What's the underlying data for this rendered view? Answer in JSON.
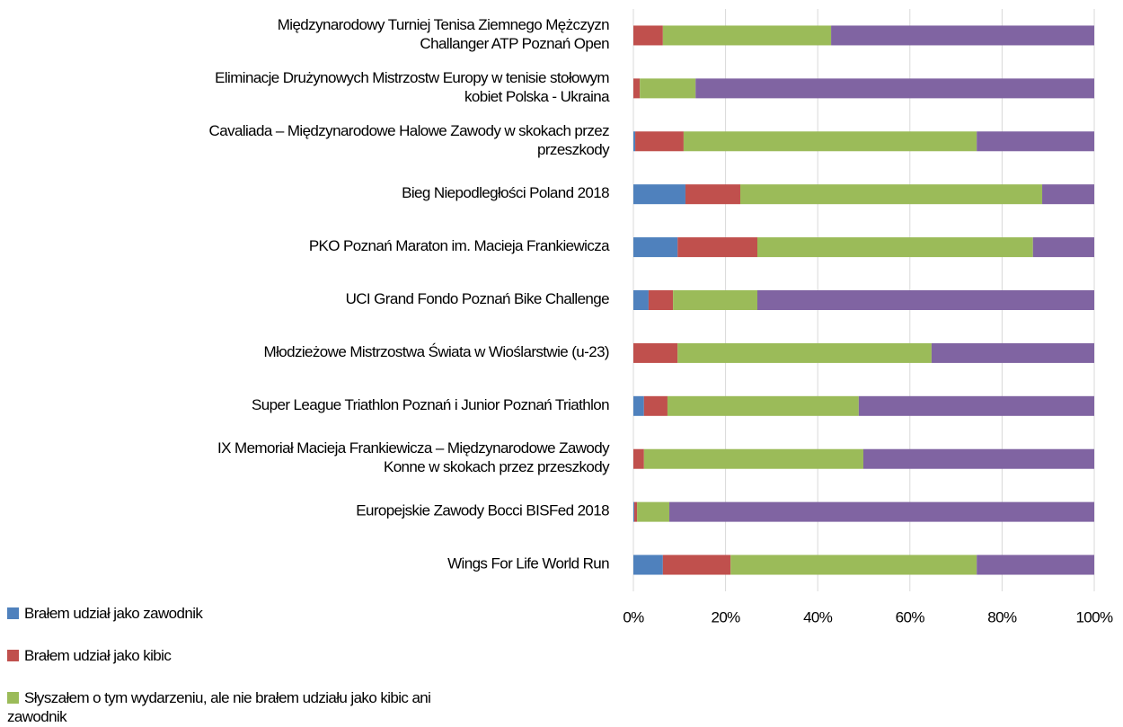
{
  "chart_data": {
    "type": "stacked-barh",
    "categories": [
      [
        "Międzynarodowy Turniej Tenisa Ziemnego Mężczyzn",
        "Challanger ATP Poznań Open"
      ],
      [
        "Eliminacje Drużynowych Mistrzostw Europy w tenisie stołowym",
        "kobiet Polska - Ukraina"
      ],
      [
        "Cavaliada – Międzynarodowe Halowe Zawody w skokach przez",
        "przeszkody"
      ],
      [
        "Bieg Niepodległości Poland 2018"
      ],
      [
        "PKO Poznań Maraton im. Macieja Frankiewicza"
      ],
      [
        "UCI Grand Fondo Poznań Bike Challenge"
      ],
      [
        "Młodzieżowe Mistrzostwa Świata w Wioślarstwie (u-23)"
      ],
      [
        "Super League Triathlon Poznań i Junior Poznań Triathlon"
      ],
      [
        "IX Memoriał Macieja Frankiewicza – Międzynarodowe Zawody",
        "Konne w skokach przez przeszkody"
      ],
      [
        "Europejskie Zawody Bocci BISFed 2018"
      ],
      [
        "Wings For Life World Run"
      ]
    ],
    "series": [
      {
        "name": "Brałem udział jako zawodnik",
        "color": "#4f81bd",
        "values": [
          0,
          0,
          0.4,
          11.3,
          9.6,
          3.3,
          0,
          2.3,
          0,
          0.2,
          6.4
        ]
      },
      {
        "name": "Brałem udział jako kibic",
        "color": "#c0504d",
        "values": [
          6.4,
          1.4,
          10.5,
          11.9,
          17.3,
          5.3,
          9.6,
          5.1,
          2.3,
          0.6,
          14.7
        ]
      },
      {
        "name": "Słyszałem o tym wydarzeniu, ale nie brałem udziału jako kibic ani zawodnik",
        "color": "#9bbb59",
        "values": [
          36.5,
          12.1,
          63.6,
          65.5,
          59.8,
          18.3,
          55.1,
          41.5,
          47.6,
          7.0,
          53.4
        ]
      },
      {
        "color": "#8064a2",
        "values": [
          57.1,
          86.5,
          25.5,
          11.3,
          13.3,
          73.1,
          35.3,
          51.1,
          50.1,
          92.2,
          25.5
        ]
      }
    ],
    "xlim": [
      0,
      100
    ],
    "xticks": [
      {
        "value": 0,
        "label": "0%"
      },
      {
        "value": 20,
        "label": "20%"
      },
      {
        "value": 40,
        "label": "40%"
      },
      {
        "value": 60,
        "label": "60%"
      },
      {
        "value": 80,
        "label": "80%"
      },
      {
        "value": 100,
        "label": "100%"
      }
    ],
    "grid": true
  }
}
